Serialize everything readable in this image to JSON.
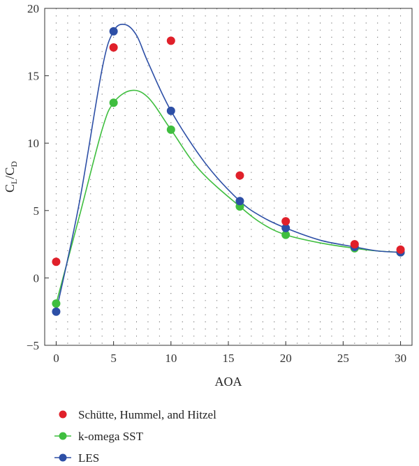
{
  "chart_data": {
    "type": "scatter",
    "xlabel": "AOA",
    "ylabel": {
      "main": "C",
      "sub1": "L",
      "slash": "/",
      "main2": "C",
      "sub2": "D"
    },
    "xlim": [
      -1,
      31
    ],
    "ylim": [
      -5,
      20
    ],
    "xticks": [
      0,
      5,
      10,
      15,
      20,
      25,
      30
    ],
    "yticks": [
      -5,
      0,
      5,
      10,
      15,
      20
    ],
    "grid": "dotted",
    "legend_position": "bottom-left",
    "series": [
      {
        "name": "Schütte, Hummel, and Hitzel",
        "color": "#e0202a",
        "markers_only": true,
        "x": [
          0,
          5,
          10,
          16,
          20,
          26,
          30
        ],
        "y": [
          1.2,
          17.1,
          17.6,
          7.6,
          4.2,
          2.5,
          2.1
        ]
      },
      {
        "name": "k-omega SST",
        "color": "#3fbe3f",
        "markers_only": false,
        "x": [
          0,
          5,
          10,
          16,
          20,
          26,
          30
        ],
        "y": [
          -1.9,
          13.0,
          11.0,
          5.3,
          3.2,
          2.2,
          1.9
        ],
        "curve": [
          [
            0,
            -1.9
          ],
          [
            2,
            4.5
          ],
          [
            4,
            11.0
          ],
          [
            5,
            13.0
          ],
          [
            6.5,
            13.9
          ],
          [
            8,
            13.4
          ],
          [
            10,
            11.0
          ],
          [
            12.5,
            8.0
          ],
          [
            16,
            5.3
          ],
          [
            18,
            4.0
          ],
          [
            20,
            3.2
          ],
          [
            23,
            2.6
          ],
          [
            26,
            2.2
          ],
          [
            28,
            2.0
          ],
          [
            30,
            1.9
          ]
        ]
      },
      {
        "name": "LES",
        "color": "#2d4fa6",
        "markers_only": false,
        "x": [
          0,
          5,
          10,
          16,
          20,
          26,
          30
        ],
        "y": [
          -2.5,
          18.3,
          12.4,
          5.7,
          3.7,
          2.3,
          1.9
        ],
        "curve": [
          [
            0,
            -2.5
          ],
          [
            2,
            5.5
          ],
          [
            4,
            15.5
          ],
          [
            5,
            18.3
          ],
          [
            6,
            18.8
          ],
          [
            7,
            18.0
          ],
          [
            8,
            16.0
          ],
          [
            10,
            12.4
          ],
          [
            13,
            8.5
          ],
          [
            16,
            5.7
          ],
          [
            18,
            4.5
          ],
          [
            20,
            3.7
          ],
          [
            23,
            2.8
          ],
          [
            26,
            2.3
          ],
          [
            28,
            2.0
          ],
          [
            30,
            1.9
          ]
        ]
      }
    ]
  },
  "legend": {
    "items": [
      {
        "label": "Schütte, Hummel, and Hitzel"
      },
      {
        "label": "k-omega SST"
      },
      {
        "label": "LES"
      }
    ]
  }
}
